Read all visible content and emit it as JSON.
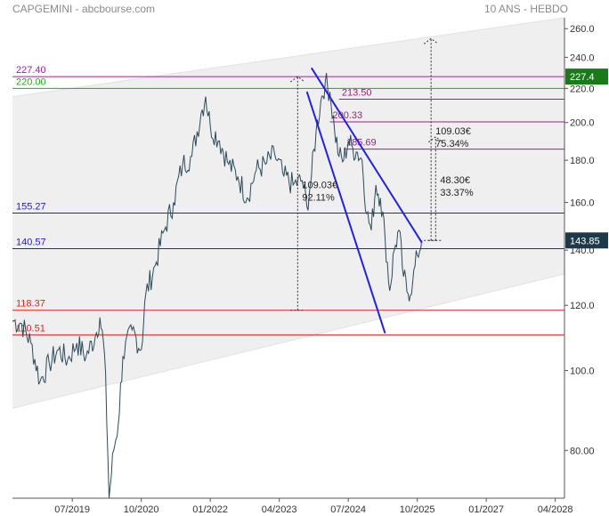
{
  "header": {
    "title": "CAPGEMINI - abcbourse.com",
    "period": "10 ANS - HEBDO"
  },
  "chart_data": {
    "type": "line",
    "y_axis": {
      "scale": "log",
      "ylim": [
        70,
        268
      ],
      "ticks": [
        "80.00",
        "100.0",
        "120.0",
        "140.0",
        "160.0",
        "180.0",
        "200.0",
        "220.0",
        "240.0",
        "260.0"
      ]
    },
    "x_axis": {
      "ticks": [
        "07/2019",
        "10/2020",
        "01/2022",
        "04/2023",
        "07/2024",
        "10/2025",
        "01/2027",
        "04/2028"
      ],
      "range": [
        "2018-06",
        "2028-06"
      ]
    },
    "grid": false,
    "series": [
      {
        "color": "#2b4a5a",
        "points": [
          [
            "2018-06",
            115
          ],
          [
            "2018-08",
            114
          ],
          [
            "2018-10",
            108
          ],
          [
            "2018-12",
            97
          ],
          [
            "2019-02",
            102
          ],
          [
            "2019-04",
            106
          ],
          [
            "2019-06",
            103
          ],
          [
            "2019-08",
            108
          ],
          [
            "2019-10",
            104
          ],
          [
            "2019-12",
            110
          ],
          [
            "2020-01",
            116
          ],
          [
            "2020-02",
            105
          ],
          [
            "2020-03",
            70
          ],
          [
            "2020-04",
            80
          ],
          [
            "2020-05",
            86
          ],
          [
            "2020-06",
            104
          ],
          [
            "2020-08",
            112
          ],
          [
            "2020-10",
            106
          ],
          [
            "2020-11",
            124
          ],
          [
            "2021-01",
            134
          ],
          [
            "2021-03",
            148
          ],
          [
            "2021-05",
            160
          ],
          [
            "2021-07",
            178
          ],
          [
            "2021-09",
            182
          ],
          [
            "2021-11",
            205
          ],
          [
            "2021-12",
            215
          ],
          [
            "2022-01",
            198
          ],
          [
            "2022-03",
            190
          ],
          [
            "2022-05",
            178
          ],
          [
            "2022-07",
            172
          ],
          [
            "2022-09",
            162
          ],
          [
            "2022-11",
            175
          ],
          [
            "2023-01",
            178
          ],
          [
            "2023-03",
            183
          ],
          [
            "2023-05",
            172
          ],
          [
            "2023-07",
            168
          ],
          [
            "2023-09",
            170
          ],
          [
            "2023-10",
            158
          ],
          [
            "2023-11",
            172
          ],
          [
            "2023-12",
            195
          ],
          [
            "2024-01",
            212
          ],
          [
            "2024-02",
            224
          ],
          [
            "2024-03",
            218
          ],
          [
            "2024-04",
            196
          ],
          [
            "2024-05",
            182
          ],
          [
            "2024-06",
            180
          ],
          [
            "2024-07",
            190
          ],
          [
            "2024-08",
            186
          ],
          [
            "2024-09",
            184
          ],
          [
            "2024-10",
            180
          ],
          [
            "2024-11",
            155
          ],
          [
            "2024-12",
            148
          ],
          [
            "2025-01",
            168
          ],
          [
            "2025-02",
            162
          ],
          [
            "2025-03",
            145
          ],
          [
            "2025-04",
            125
          ],
          [
            "2025-05",
            140
          ],
          [
            "2025-06",
            148
          ],
          [
            "2025-07",
            130
          ],
          [
            "2025-08",
            124
          ],
          [
            "2025-09",
            128
          ],
          [
            "2025-10",
            138
          ],
          [
            "2025-11",
            143.85
          ]
        ]
      }
    ],
    "channel": {
      "upper": [
        [
          "2018-06",
          215
        ],
        [
          "2028-06",
          268
        ]
      ],
      "lower": [
        [
          "2018-06",
          90
        ],
        [
          "2028-06",
          131
        ]
      ],
      "fill": "#efefef"
    },
    "horizontal_levels": [
      {
        "label": "227.40",
        "value": 227.4,
        "color": "#a020a0",
        "label_side": "left"
      },
      {
        "label": "220.00",
        "value": 220.0,
        "color": "#22aa22",
        "label_side": "left"
      },
      {
        "label": "213.50",
        "value": 213.5,
        "color": "#8b2a7a",
        "label_side": "mid",
        "from": "2024-05"
      },
      {
        "label": "200.33",
        "value": 200.33,
        "color": "#8b2a7a",
        "label_side": "mid",
        "from": "2024-03"
      },
      {
        "label": "185.69",
        "value": 185.69,
        "color": "#8b2a7a",
        "label_side": "mid",
        "from": "2024-06"
      },
      {
        "label": "155.27",
        "value": 155.27,
        "color": "#2222cc",
        "label_side": "left"
      },
      {
        "label": "140.57",
        "value": 140.57,
        "color": "#2222cc",
        "label_side": "left"
      },
      {
        "label": "118.37",
        "value": 118.37,
        "color": "#dd2222",
        "label_side": "left"
      },
      {
        "label": "110.51",
        "value": 110.51,
        "color": "#dd2222",
        "label_side": "left"
      }
    ],
    "trendlines": [
      {
        "color": "#2222dd",
        "from": [
          "2023-11",
          233
        ],
        "to": [
          "2025-11",
          143
        ]
      },
      {
        "color": "#2222dd",
        "from": [
          "2023-10",
          218
        ],
        "to": [
          "2025-03",
          111
        ]
      }
    ],
    "annotations": [
      {
        "text1": "109.03€",
        "text2": "92.11%",
        "x": "2023-08",
        "y_from": 118.37,
        "y_to": 227.4
      },
      {
        "text1": "109.03€",
        "text2": "75.34%",
        "x": "2026-01",
        "y_from": 143.85,
        "y_to": 252.9
      },
      {
        "text1": "48.30€",
        "text2": "33.37%",
        "x": "2026-02",
        "y_from": 143.85,
        "y_to": 192.15
      }
    ],
    "price_tags": [
      {
        "label": "227.4",
        "value": 227.4,
        "color": "#1a7a1a"
      },
      {
        "label": "143.85",
        "value": 143.85,
        "color": "#1e3a4a"
      }
    ]
  }
}
